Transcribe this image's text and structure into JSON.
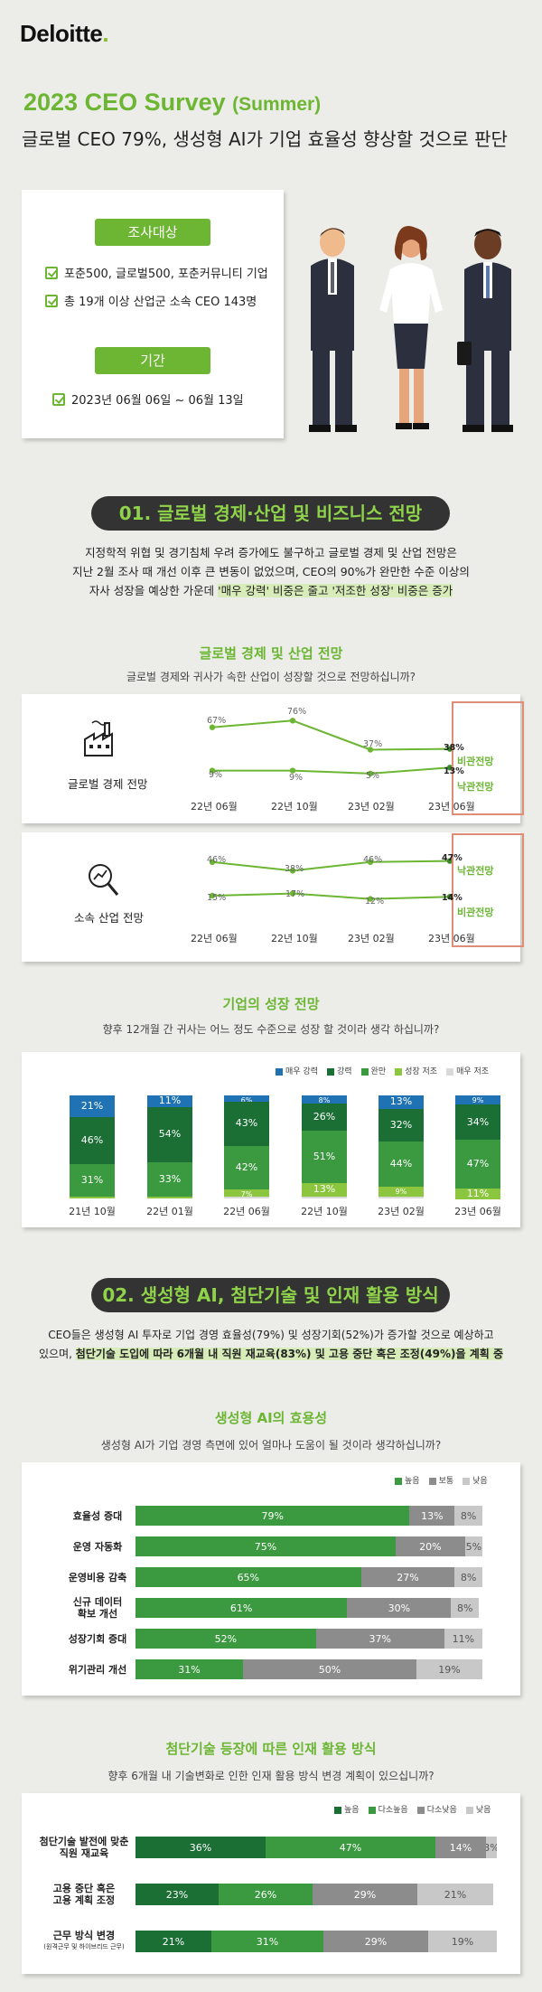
{
  "brand": {
    "logo_text": "Deloitte",
    "logo_dot": "."
  },
  "header": {
    "title": "2023 CEO Survey",
    "title_sub": "(Summer)",
    "subtitle": "글로벌 CEO 79%, 생성형 AI가 기업 효율성 향상할 것으로 판단"
  },
  "info": {
    "target_label": "조사대상",
    "targets": [
      "포춘500, 글로벌500, 포춘커뮤니티 기업",
      "총 19개 이상 산업군 소속 CEO 143명"
    ],
    "period_label": "기간",
    "period": "2023년 06월 06일 ~ 06월 13일"
  },
  "section1": {
    "heading": "01. 글로벌 경제·산업 및 비즈니스 전망",
    "para_l1": "지정학적 위협 및 경기침체 우려 증가에도 불구하고 글로벌 경제 및 산업 전망은",
    "para_l2": "지난 2월 조사 때 개선 이후 큰 변동이 없었으며, CEO의 90%가 완만한 수준 이상의",
    "para_l3a": "자사 성장을 예상한 가운데 ",
    "para_l3b": "'매우 강력' 비중은 줄고 '저조한 성장' 비중은 증가",
    "outlook_title": "글로벌 경제 및 산업 전망",
    "outlook_q": "글로벌 경제와 귀사가 속한 산업이 성장할 것으로 전망하십니까?",
    "growth_title": "기업의 성장 전망",
    "growth_q": "향후 12개월 간 귀사는 어느 정도 수준으로 성장 할 것이라 생각 하십니까?"
  },
  "section2": {
    "heading": "02. 생성형 AI, 첨단기술 및 인재 활용 방식",
    "para_l1": "CEO들은 생성형 AI 투자로 기업 경영 효율성(79%) 및 성장기회(52%)가 증가할 것으로 예상하고",
    "para_l2a": "있으며, ",
    "para_l2b": "첨단기술 도입에 따라 6개월 내 직원 재교육(83%) 및 고용 중단 혹은 조정(49%)을 계획 중",
    "ai_title": "생성형 AI의 효용성",
    "ai_q": "생성형 AI가 기업 경영 측면에 있어 얼마나 도움이 될 것이라 생각하십니까?",
    "talent_title": "첨단기술 등장에 따른 인재 활용 방식",
    "talent_q": "향후 6개월 내 기술변화로 인한 인재 활용 방식 변경 계획이 있으십니까?"
  },
  "chart_data": [
    {
      "type": "line",
      "label": "글로벌 경제 전망",
      "categories": [
        "22년 06월",
        "22년 10월",
        "23년 02월",
        "23년 06월"
      ],
      "series": [
        {
          "name": "비관전망",
          "values": [
            67,
            76,
            37,
            38
          ],
          "labels": [
            "67%",
            "76%",
            "37%",
            "38%"
          ]
        },
        {
          "name": "낙관전망",
          "values": [
            9,
            9,
            5,
            13
          ],
          "labels": [
            "9%",
            "9%",
            "5%",
            "13%"
          ]
        }
      ]
    },
    {
      "type": "line",
      "label": "소속 산업 전망",
      "categories": [
        "22년 06월",
        "22년 10월",
        "23년 02월",
        "23년 06월"
      ],
      "series": [
        {
          "name": "낙관전망",
          "values": [
            46,
            38,
            46,
            47
          ],
          "labels": [
            "46%",
            "38%",
            "46%",
            "47%"
          ]
        },
        {
          "name": "비관전망",
          "values": [
            15,
            17,
            12,
            14
          ],
          "labels": [
            "15%",
            "17%",
            "12%",
            "14%"
          ]
        }
      ]
    },
    {
      "type": "bar",
      "stacked": true,
      "categories": [
        "21년 10월",
        "22년 01월",
        "22년 06월",
        "22년 10월",
        "23년 02월",
        "23년 06월"
      ],
      "series": [
        {
          "name": "매우 강력",
          "color": "#1f73b4",
          "values": [
            21,
            11,
            6,
            8,
            13,
            9
          ]
        },
        {
          "name": "강력",
          "color": "#1b6e34",
          "values": [
            46,
            54,
            43,
            26,
            32,
            34
          ]
        },
        {
          "name": "완만",
          "color": "#3b9a3f",
          "values": [
            31,
            33,
            42,
            51,
            44,
            47
          ]
        },
        {
          "name": "성장 저조",
          "color": "#8cc63f",
          "values": [
            2,
            2,
            7,
            13,
            9,
            11
          ]
        },
        {
          "name": "매우 저조",
          "color": "#d9d9d9",
          "values": [
            0,
            0,
            2,
            2,
            2,
            0
          ]
        }
      ],
      "value_labels": [
        [
          "21%",
          "46%",
          "31%",
          "2%",
          ""
        ],
        [
          "11%",
          "54%",
          "33%",
          "2%",
          ""
        ],
        [
          "6%",
          "43%",
          "42%",
          "7%",
          "2%"
        ],
        [
          "8%",
          "26%",
          "51%",
          "13%",
          "2%"
        ],
        [
          "13%",
          "32%",
          "44%",
          "9%",
          "2%"
        ],
        [
          "9%",
          "34%",
          "47%",
          "11%",
          ""
        ]
      ]
    },
    {
      "type": "bar",
      "stacked": true,
      "orientation": "horizontal",
      "legend": [
        "높음",
        "보통",
        "낮음"
      ],
      "colors": [
        "#3b9a3f",
        "#8c8c8c",
        "#c8c8c8"
      ],
      "categories": [
        "효율성 증대",
        "운영 자동화",
        "운영비용 감축",
        "신규 데이터 확보 개선",
        "성장기회 증대",
        "위기관리 개선"
      ],
      "category_lines": [
        [
          "효율성 증대"
        ],
        [
          "운영 자동화"
        ],
        [
          "운영비용 감축"
        ],
        [
          "신규 데이터",
          "확보 개선"
        ],
        [
          "성장기회 증대"
        ],
        [
          "위기관리 개선"
        ]
      ],
      "values": [
        [
          79,
          13,
          8
        ],
        [
          75,
          20,
          5
        ],
        [
          65,
          27,
          8
        ],
        [
          61,
          30,
          8
        ],
        [
          52,
          37,
          11
        ],
        [
          31,
          50,
          19
        ]
      ]
    },
    {
      "type": "bar",
      "stacked": true,
      "orientation": "horizontal",
      "legend": [
        "높음",
        "다소높음",
        "다소낮음",
        "낮음"
      ],
      "colors": [
        "#1b6e34",
        "#3b9a3f",
        "#8c8c8c",
        "#c8c8c8"
      ],
      "categories": [
        "첨단기술 발전에 맞춘 직원 재교육",
        "고용 중단 혹은 고용 계획 조정",
        "근무 방식 변경 (원격근무 및 하이브리드 근무)"
      ],
      "category_lines": [
        [
          "첨단기술 발전에 맞춘",
          "직원 재교육"
        ],
        [
          "고용 중단 혹은",
          "고용 계획 조정"
        ],
        [
          "근무 방식 변경",
          "(원격근무 및 하이브리드 근무)"
        ]
      ],
      "values": [
        [
          36,
          47,
          14,
          3
        ],
        [
          23,
          26,
          29,
          21
        ],
        [
          21,
          31,
          29,
          19
        ]
      ]
    }
  ]
}
